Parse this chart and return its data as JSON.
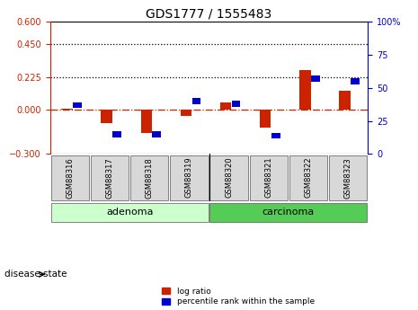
{
  "title": "GDS1777 / 1555483",
  "samples": [
    "GSM88316",
    "GSM88317",
    "GSM88318",
    "GSM88319",
    "GSM88320",
    "GSM88321",
    "GSM88322",
    "GSM88323"
  ],
  "log_ratio": [
    0.01,
    -0.09,
    -0.155,
    -0.04,
    0.05,
    -0.12,
    0.27,
    0.13
  ],
  "percentile": [
    37,
    15,
    15,
    40,
    38,
    14,
    57,
    55
  ],
  "ylim_left": [
    -0.3,
    0.6
  ],
  "ylim_right": [
    0,
    100
  ],
  "yticks_left": [
    -0.3,
    0.0,
    0.225,
    0.45,
    0.6
  ],
  "yticks_right": [
    0,
    25,
    50,
    75,
    100
  ],
  "hlines": [
    0.225,
    0.45
  ],
  "zero_line": 0.0,
  "red_color": "#cc2200",
  "blue_color": "#0000cc",
  "disease_groups": [
    {
      "label": "adenoma",
      "start": 0,
      "end": 3,
      "color": "#ccffcc"
    },
    {
      "label": "carcinoma",
      "start": 4,
      "end": 7,
      "color": "#55cc55"
    }
  ],
  "legend_items": [
    {
      "label": "log ratio",
      "color": "#cc2200"
    },
    {
      "label": "percentile rank within the sample",
      "color": "#0000cc"
    }
  ],
  "disease_state_label": "disease state",
  "title_fontsize": 10,
  "tick_label_fontsize": 7,
  "sample_label_fontsize": 6,
  "group_label_fontsize": 8
}
